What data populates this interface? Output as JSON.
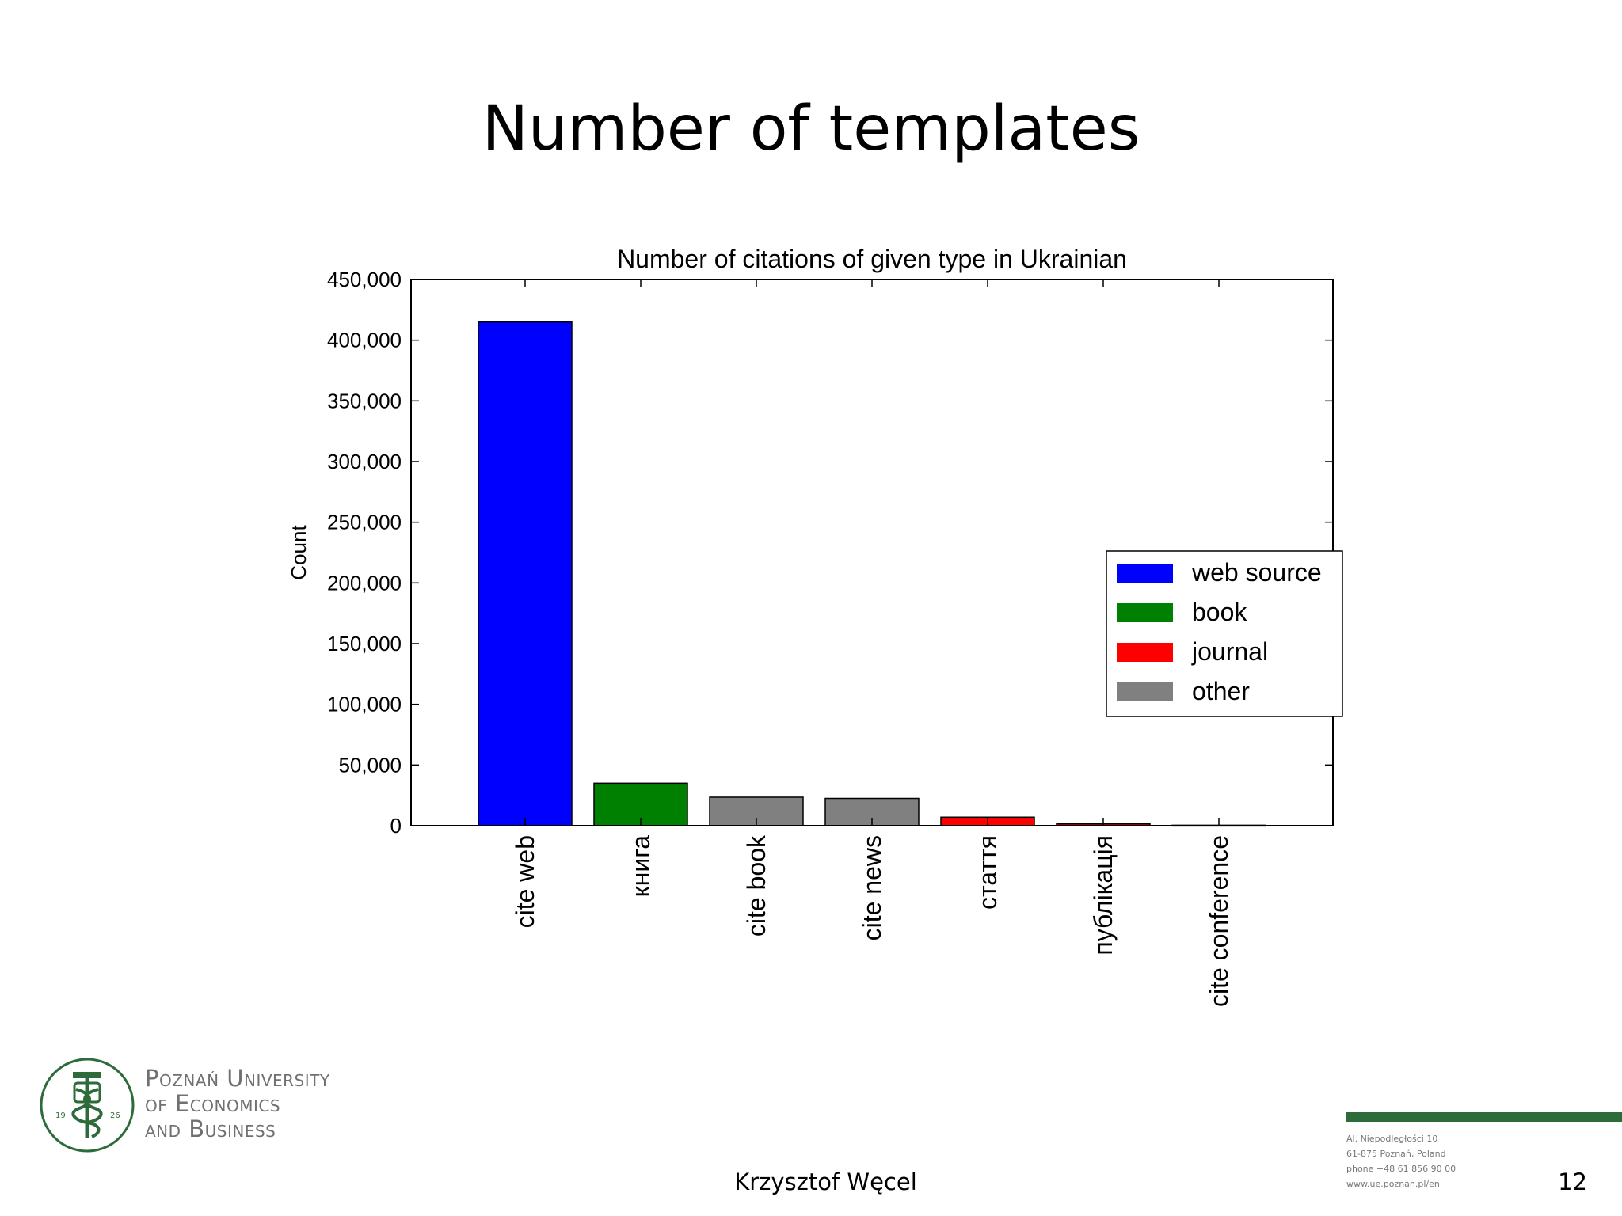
{
  "slide": {
    "title": "Number of templates",
    "author": "Krzysztof Węcel",
    "page_number": "12"
  },
  "university": {
    "name_lines": [
      "Poznań University",
      "of Economics",
      "and Business"
    ],
    "logo_year_left": "19",
    "logo_year_right": "26",
    "accent_color": "#2e6b3a"
  },
  "contact": {
    "lines": [
      "Al. Niepodległości 10",
      "61-875 Poznań, Poland",
      "phone +48 61 856 90 00",
      "www.ue.poznan.pl/en"
    ]
  },
  "chart_data": {
    "type": "bar",
    "title": "Number of citations of given type in Ukrainian",
    "xlabel": "",
    "ylabel": "Count",
    "ylim": [
      0,
      450000
    ],
    "yticks": [
      0,
      50000,
      100000,
      150000,
      200000,
      250000,
      300000,
      350000,
      400000,
      450000
    ],
    "ytick_labels": [
      "0",
      "50,000",
      "100,000",
      "150,000",
      "200,000",
      "250,000",
      "300,000",
      "350,000",
      "400,000",
      "450,000"
    ],
    "categories": [
      "cite web",
      "книга",
      "cite book",
      "cite news",
      "стаття",
      "публікація",
      "cite conference"
    ],
    "values": [
      415000,
      35000,
      23500,
      22500,
      7000,
      1500,
      400
    ],
    "category_type": [
      "web source",
      "book",
      "other",
      "other",
      "journal",
      "journal",
      "other"
    ],
    "legend": {
      "position": "center-right",
      "entries": [
        {
          "label": "web source",
          "color": "#0000ff"
        },
        {
          "label": "book",
          "color": "#008000"
        },
        {
          "label": "journal",
          "color": "#ff0000"
        },
        {
          "label": "other",
          "color": "#808080"
        }
      ]
    },
    "grid": false
  }
}
